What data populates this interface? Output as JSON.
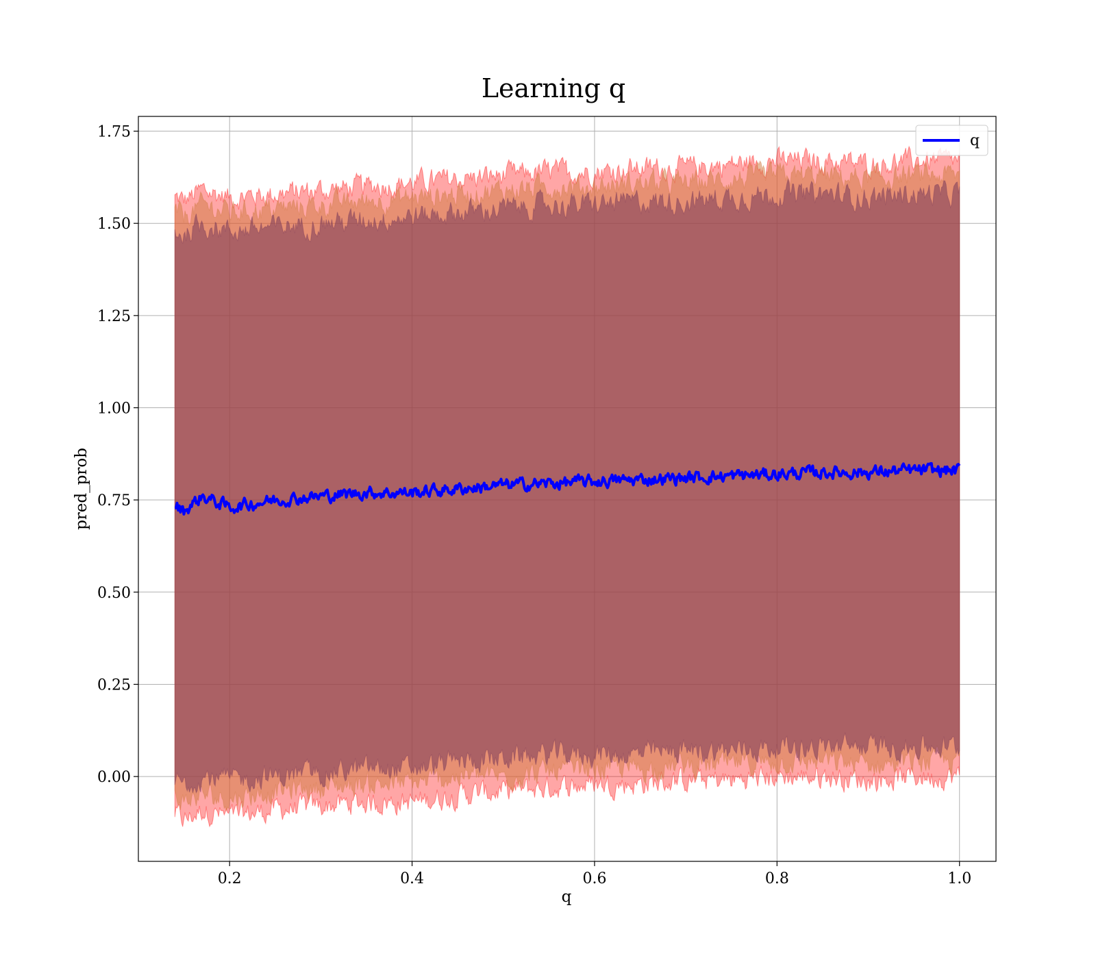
{
  "chart_data": {
    "type": "area",
    "title": "Learning q",
    "xlabel": "q",
    "ylabel": "pred_prob",
    "xlim": [
      0.1,
      1.04
    ],
    "ylim": [
      -0.23,
      1.79
    ],
    "x_ticks": [
      0.2,
      0.4,
      0.6,
      0.8,
      1.0
    ],
    "x_tick_labels": [
      "0.2",
      "0.4",
      "0.6",
      "0.8",
      "1.0"
    ],
    "y_ticks": [
      0.0,
      0.25,
      0.5,
      0.75,
      1.0,
      1.25,
      1.5,
      1.75
    ],
    "y_tick_labels": [
      "0.00",
      "0.25",
      "0.50",
      "0.75",
      "1.00",
      "1.25",
      "1.50",
      "1.75"
    ],
    "grid": true,
    "legend": {
      "position": "top-right",
      "entries": [
        "q"
      ]
    },
    "x_range": [
      0.14,
      1.0
    ],
    "series": [
      {
        "name": "q",
        "color": "#0000ff",
        "x": [
          0.14,
          0.15,
          0.16,
          0.17,
          0.2,
          0.25,
          0.3,
          0.35,
          0.4,
          0.45,
          0.5,
          0.55,
          0.6,
          0.65,
          0.7,
          0.75,
          0.8,
          0.85,
          0.9,
          0.95,
          1.0
        ],
        "y": [
          0.735,
          0.72,
          0.74,
          0.76,
          0.73,
          0.75,
          0.76,
          0.77,
          0.77,
          0.78,
          0.79,
          0.795,
          0.8,
          0.805,
          0.81,
          0.815,
          0.82,
          0.825,
          0.825,
          0.83,
          0.83
        ]
      }
    ],
    "bands": [
      {
        "color": "#ff0000",
        "x": [
          0.14,
          0.15,
          0.17,
          0.2,
          0.25,
          0.3,
          0.35,
          0.4,
          0.45,
          0.5,
          0.55,
          0.6,
          0.65,
          0.7,
          0.75,
          0.8,
          0.85,
          0.9,
          0.95,
          1.0
        ],
        "lower": [
          -0.1,
          -0.12,
          -0.09,
          -0.11,
          -0.09,
          -0.08,
          -0.07,
          -0.07,
          -0.05,
          -0.04,
          -0.03,
          -0.02,
          -0.02,
          -0.01,
          -0.01,
          0.0,
          0.0,
          -0.01,
          0.0,
          0.0
        ],
        "upper": [
          1.57,
          1.56,
          1.59,
          1.57,
          1.58,
          1.59,
          1.6,
          1.61,
          1.62,
          1.63,
          1.64,
          1.64,
          1.65,
          1.65,
          1.66,
          1.67,
          1.67,
          1.66,
          1.67,
          1.67
        ]
      },
      {
        "color": "#d07a40",
        "x": [
          0.14,
          0.15,
          0.17,
          0.2,
          0.25,
          0.3,
          0.35,
          0.4,
          0.45,
          0.5,
          0.55,
          0.6,
          0.65,
          0.7,
          0.75,
          0.8,
          0.85,
          0.9,
          0.95,
          1.0
        ],
        "lower": [
          -0.05,
          -0.07,
          -0.05,
          -0.06,
          -0.04,
          -0.03,
          -0.02,
          -0.02,
          0.0,
          0.0,
          0.01,
          0.02,
          0.02,
          0.03,
          0.03,
          0.04,
          0.04,
          0.03,
          0.04,
          0.04
        ],
        "upper": [
          1.53,
          1.52,
          1.55,
          1.53,
          1.54,
          1.55,
          1.56,
          1.57,
          1.58,
          1.59,
          1.6,
          1.6,
          1.61,
          1.61,
          1.62,
          1.63,
          1.63,
          1.62,
          1.63,
          1.63
        ]
      },
      {
        "color": "#7a3a5a",
        "x": [
          0.14,
          0.15,
          0.17,
          0.2,
          0.25,
          0.3,
          0.35,
          0.4,
          0.45,
          0.5,
          0.55,
          0.6,
          0.65,
          0.7,
          0.75,
          0.8,
          0.85,
          0.9,
          0.95,
          1.0
        ],
        "lower": [
          -0.01,
          -0.02,
          0.0,
          -0.01,
          0.0,
          0.01,
          0.02,
          0.02,
          0.04,
          0.05,
          0.06,
          0.06,
          0.06,
          0.07,
          0.07,
          0.08,
          0.08,
          0.08,
          0.08,
          0.08
        ],
        "upper": [
          1.48,
          1.47,
          1.5,
          1.48,
          1.49,
          1.5,
          1.51,
          1.52,
          1.53,
          1.54,
          1.55,
          1.55,
          1.56,
          1.56,
          1.57,
          1.58,
          1.58,
          1.57,
          1.58,
          1.58
        ]
      }
    ]
  }
}
